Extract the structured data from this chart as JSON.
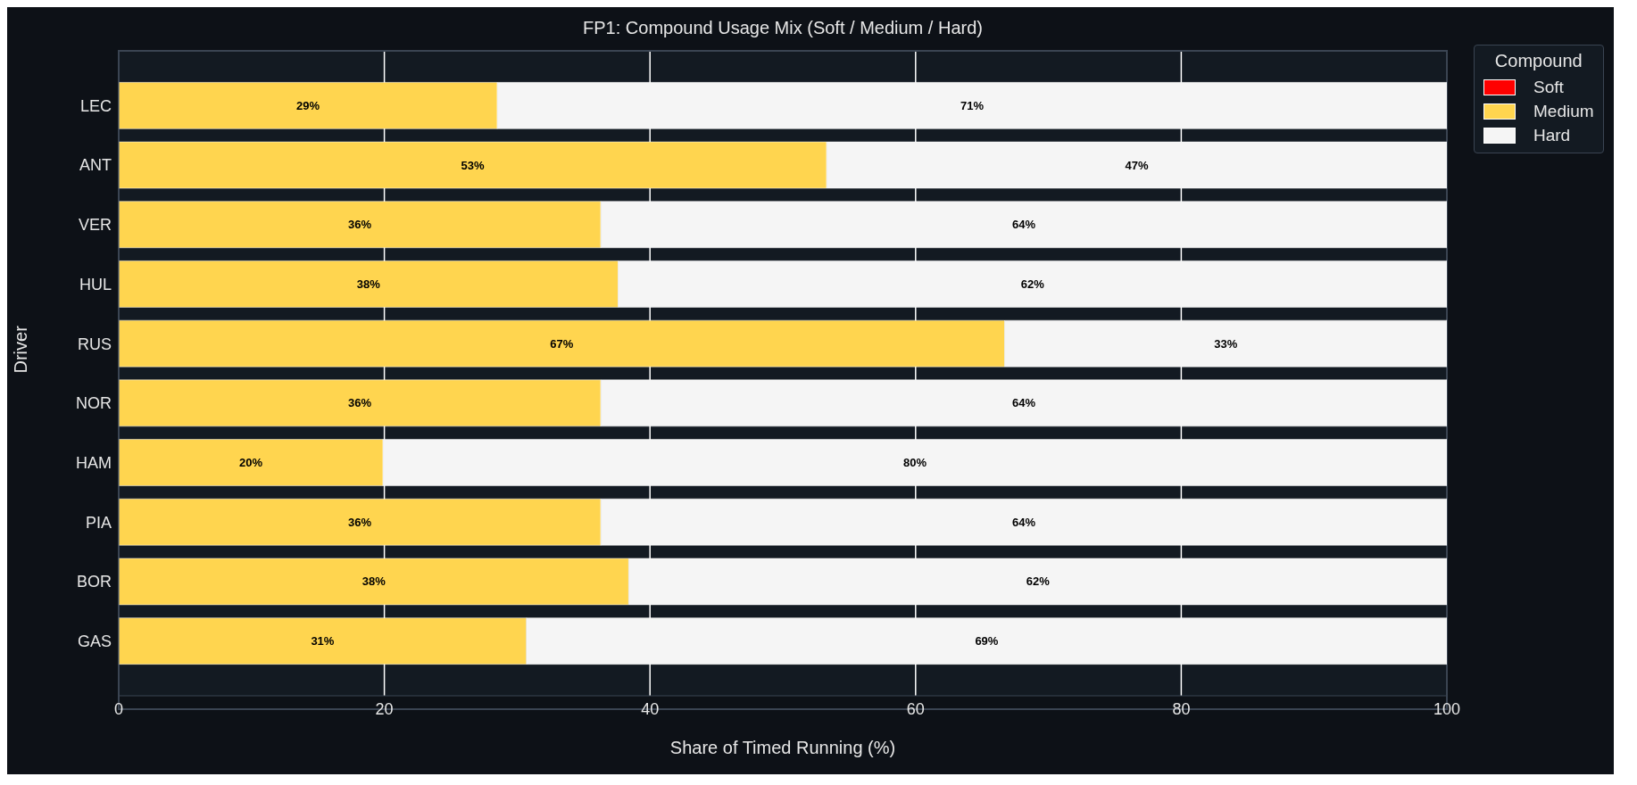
{
  "chart_data": {
    "type": "bar",
    "orientation": "horizontal",
    "stacked": true,
    "title": "FP1: Compound Usage Mix (Soft / Medium / Hard)",
    "xlabel": "Share of Timed Running (%)",
    "ylabel": "Driver",
    "legend_title": "Compound",
    "categories": [
      "LEC",
      "ANT",
      "VER",
      "HUL",
      "RUS",
      "NOR",
      "HAM",
      "PIA",
      "BOR",
      "GAS"
    ],
    "series": [
      {
        "name": "Soft",
        "color": "#ff0000",
        "values": [
          0,
          0,
          0,
          0,
          0,
          0,
          0,
          0,
          0,
          0
        ]
      },
      {
        "name": "Medium",
        "color": "#ffd54f",
        "values": [
          28.5,
          53.3,
          36.3,
          37.6,
          66.7,
          36.3,
          19.9,
          36.3,
          38.4,
          30.7
        ],
        "value_labels": [
          "29%",
          "53%",
          "36%",
          "38%",
          "67%",
          "36%",
          "20%",
          "36%",
          "38%",
          "31%"
        ]
      },
      {
        "name": "Hard",
        "color": "#f5f5f5",
        "values": [
          71.5,
          46.7,
          63.7,
          62.4,
          33.3,
          63.7,
          80.1,
          63.7,
          61.6,
          69.3
        ],
        "value_labels": [
          "71%",
          "47%",
          "64%",
          "62%",
          "33%",
          "64%",
          "80%",
          "64%",
          "62%",
          "69%"
        ]
      }
    ],
    "xlim": [
      0,
      100
    ],
    "xticks": [
      0,
      20,
      40,
      60,
      80,
      100
    ],
    "grid": "x",
    "legend": "top right"
  }
}
